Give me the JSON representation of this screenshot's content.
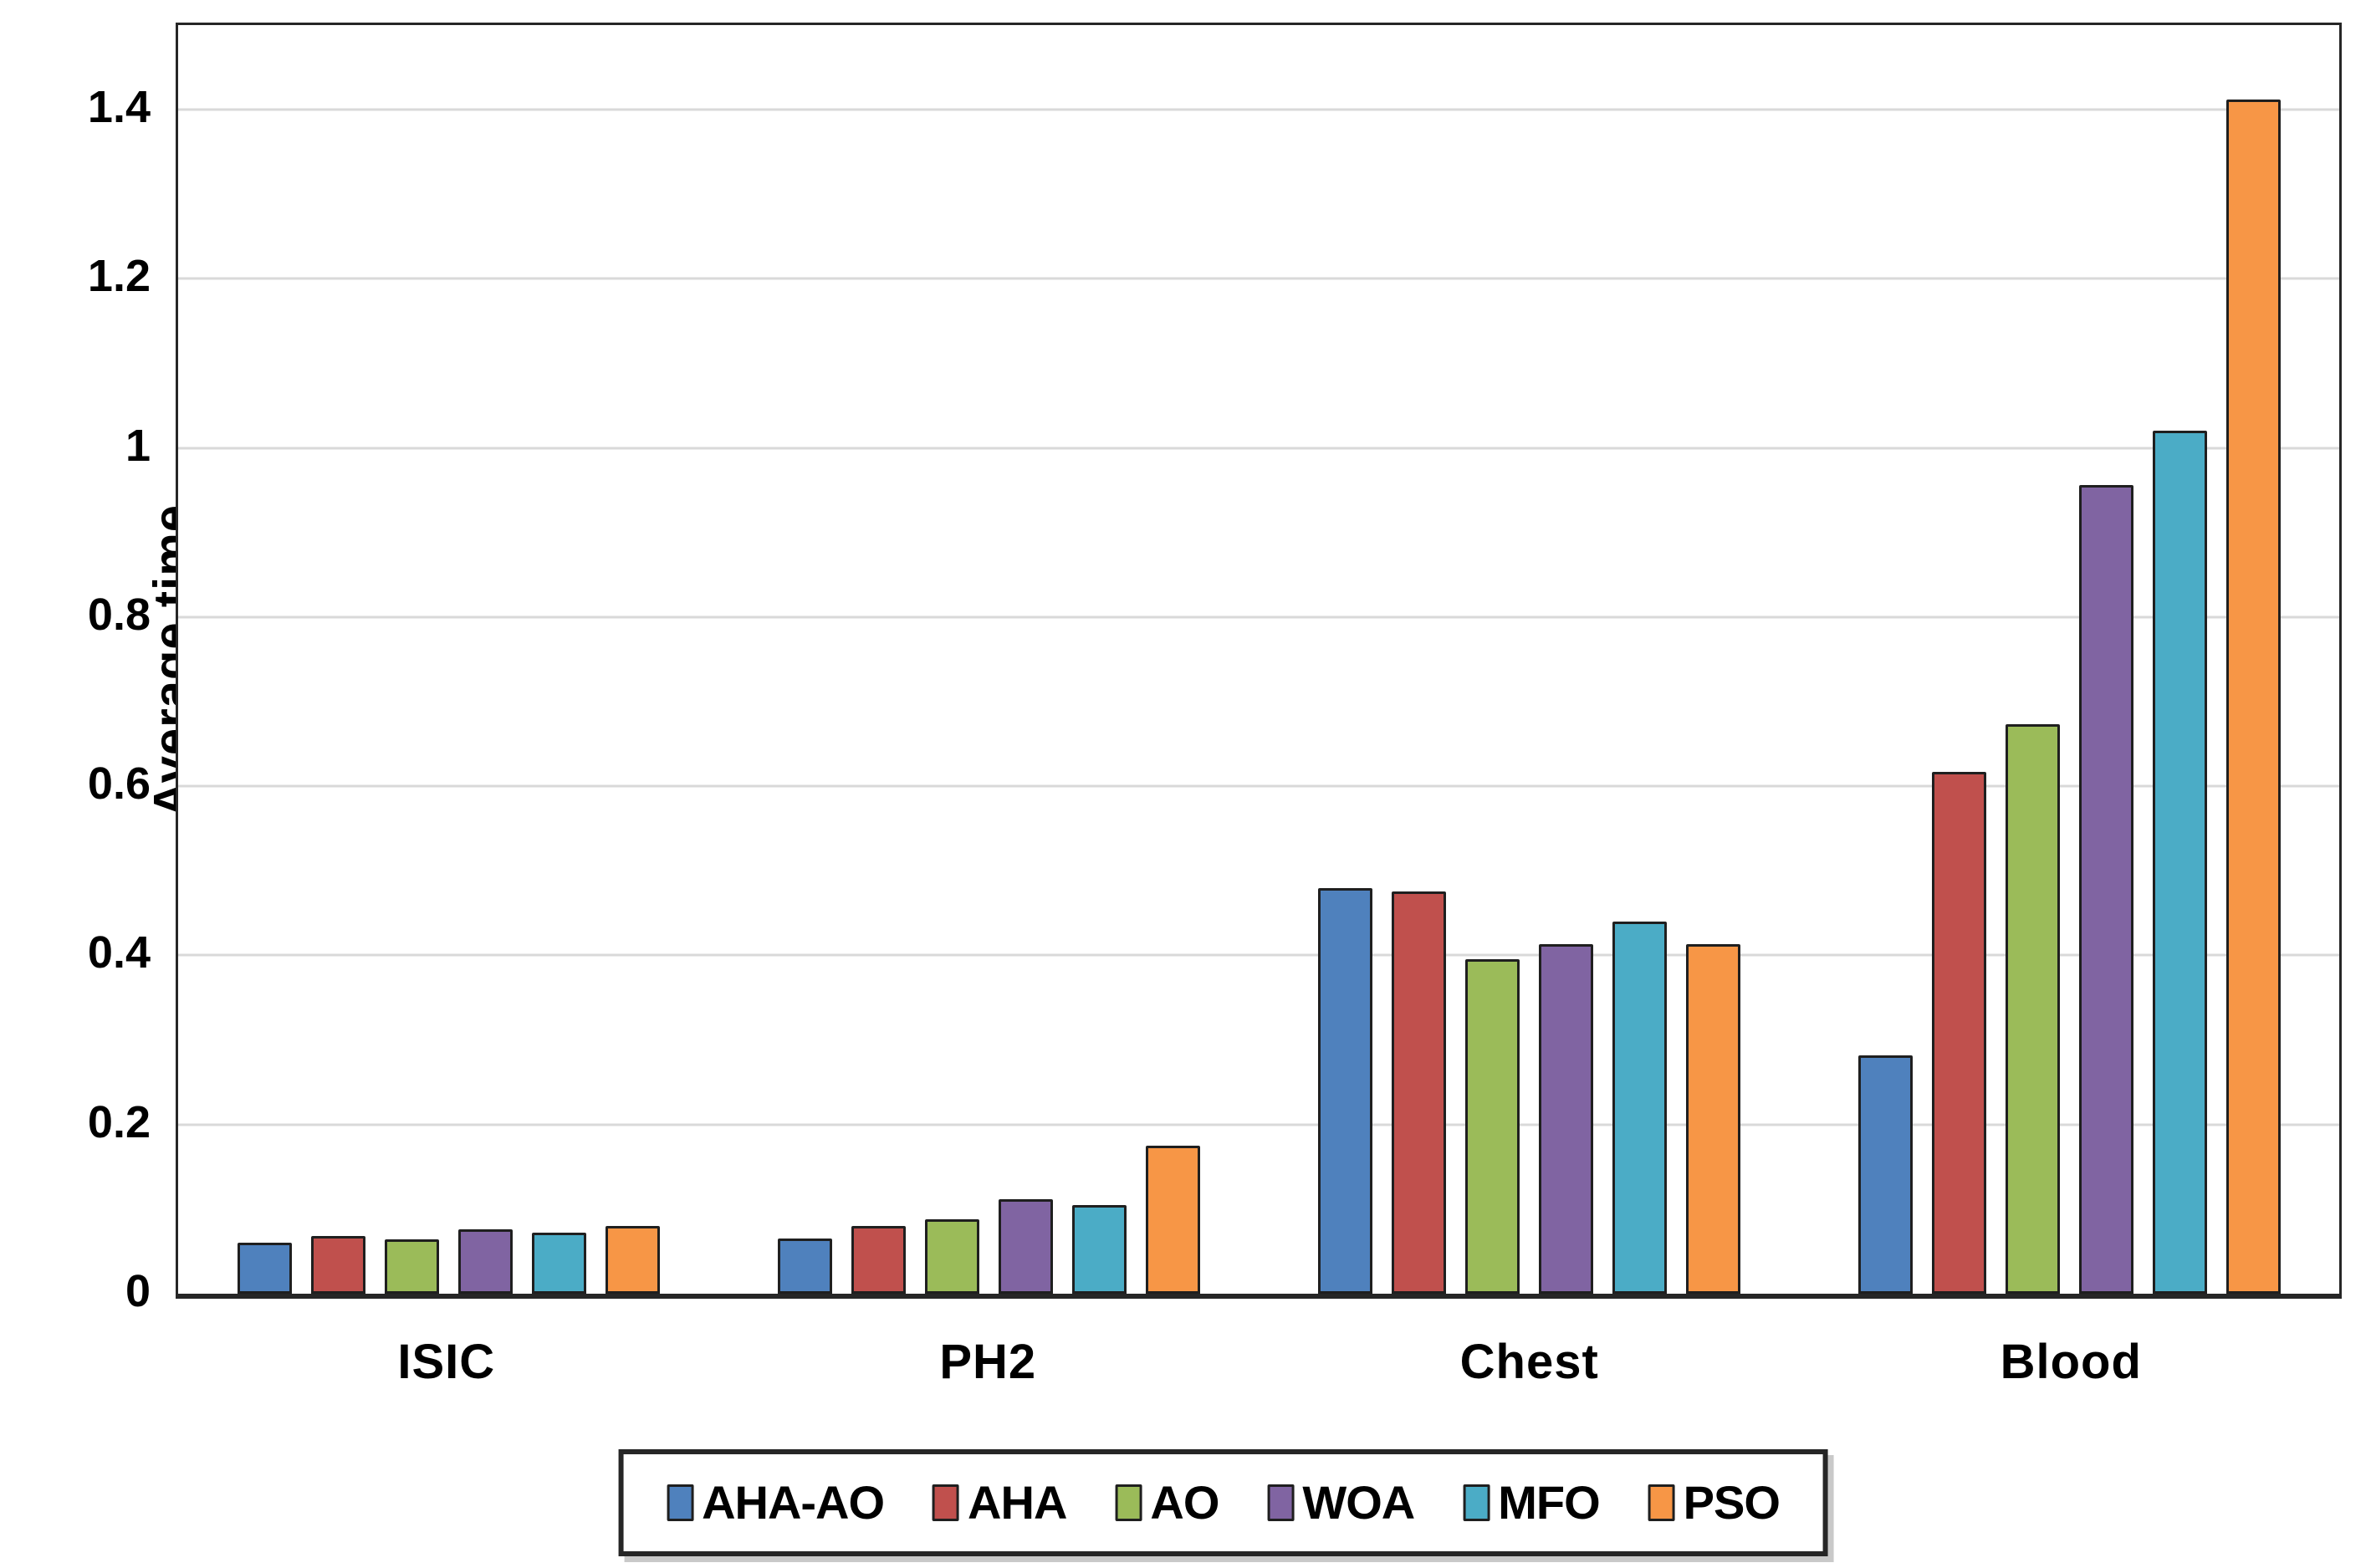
{
  "style": {
    "background": "#ffffff",
    "axis_color": "#262626",
    "grid_color": "#d9d9d9",
    "bar_stroke": "#1f1f1f",
    "text_color": "#000000"
  },
  "chart_data": {
    "type": "bar",
    "title": "",
    "xlabel": "",
    "ylabel": "Average time",
    "categories": [
      "ISIC",
      "PH2",
      "Chest",
      "Blood"
    ],
    "series": [
      {
        "name": "AHA-AO",
        "color": "#4F81BD",
        "values": [
          0.06,
          0.065,
          0.48,
          0.282
        ]
      },
      {
        "name": "AHA",
        "color": "#C0504D",
        "values": [
          0.068,
          0.08,
          0.476,
          0.617
        ]
      },
      {
        "name": "AO",
        "color": "#9BBB59",
        "values": [
          0.064,
          0.088,
          0.396,
          0.673
        ]
      },
      {
        "name": "WOA",
        "color": "#8064A2",
        "values": [
          0.076,
          0.112,
          0.413,
          0.956
        ]
      },
      {
        "name": "MFO",
        "color": "#4BACC6",
        "values": [
          0.072,
          0.105,
          0.44,
          1.02
        ]
      },
      {
        "name": "PSO",
        "color": "#F79646",
        "values": [
          0.08,
          0.175,
          0.413,
          1.412
        ]
      }
    ],
    "ylim": [
      0,
      1.5
    ],
    "yticks": [
      {
        "value": 0.0,
        "label": "0"
      },
      {
        "value": 0.2,
        "label": "0.2"
      },
      {
        "value": 0.4,
        "label": "0.4"
      },
      {
        "value": 0.6,
        "label": "0.6"
      },
      {
        "value": 0.8,
        "label": "0.8"
      },
      {
        "value": 1.0,
        "label": "1"
      },
      {
        "value": 1.2,
        "label": "1.2"
      },
      {
        "value": 1.4,
        "label": "1.4"
      }
    ],
    "grid": true,
    "legend_position": "bottom"
  }
}
